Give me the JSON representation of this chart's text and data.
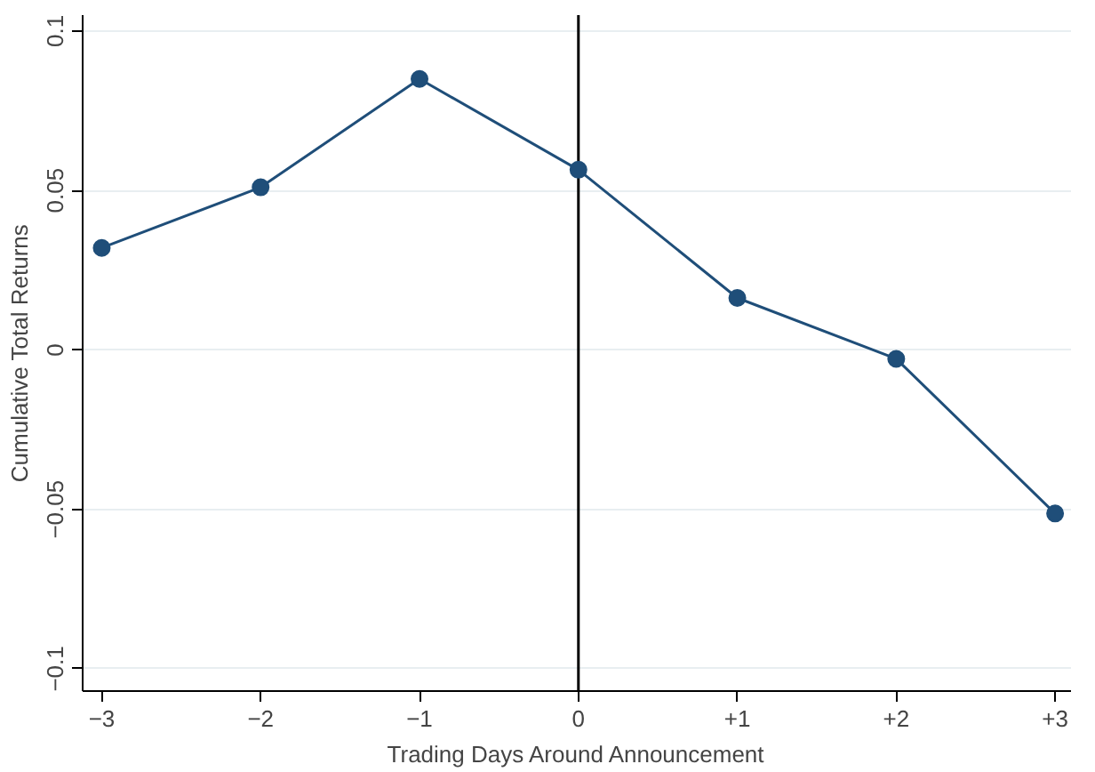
{
  "chart_data": {
    "type": "line",
    "xlabel": "Trading Days Around Announcement",
    "ylabel": "Cumulative Total Returns",
    "x": [
      -3,
      -2,
      -1,
      0,
      1,
      2,
      3
    ],
    "series": [
      {
        "color": "#1f4e79",
        "values": [
          0.032,
          0.051,
          0.085,
          0.0565,
          0.0163,
          -0.0028,
          -0.0513
        ]
      }
    ],
    "xlim": [
      -3.12,
      3.1
    ],
    "ylim": [
      -0.107,
      0.105
    ],
    "xticks": [
      {
        "value": -3,
        "label": "−3"
      },
      {
        "value": -2,
        "label": "−2"
      },
      {
        "value": -1,
        "label": "−1"
      },
      0,
      {
        "value": 1,
        "label": "+1"
      },
      {
        "value": 2,
        "label": "+2"
      },
      {
        "value": 3,
        "label": "+3"
      }
    ],
    "yticks": [
      {
        "value": -0.1,
        "label": "−0.1"
      },
      {
        "value": -0.05,
        "label": "−0.05"
      },
      0,
      0.05,
      0.1
    ],
    "ref_lines": [
      {
        "axis": "x",
        "value": 0,
        "color": "#000000"
      }
    ],
    "grid": "y",
    "marker": "circle",
    "line_style": "solid"
  }
}
